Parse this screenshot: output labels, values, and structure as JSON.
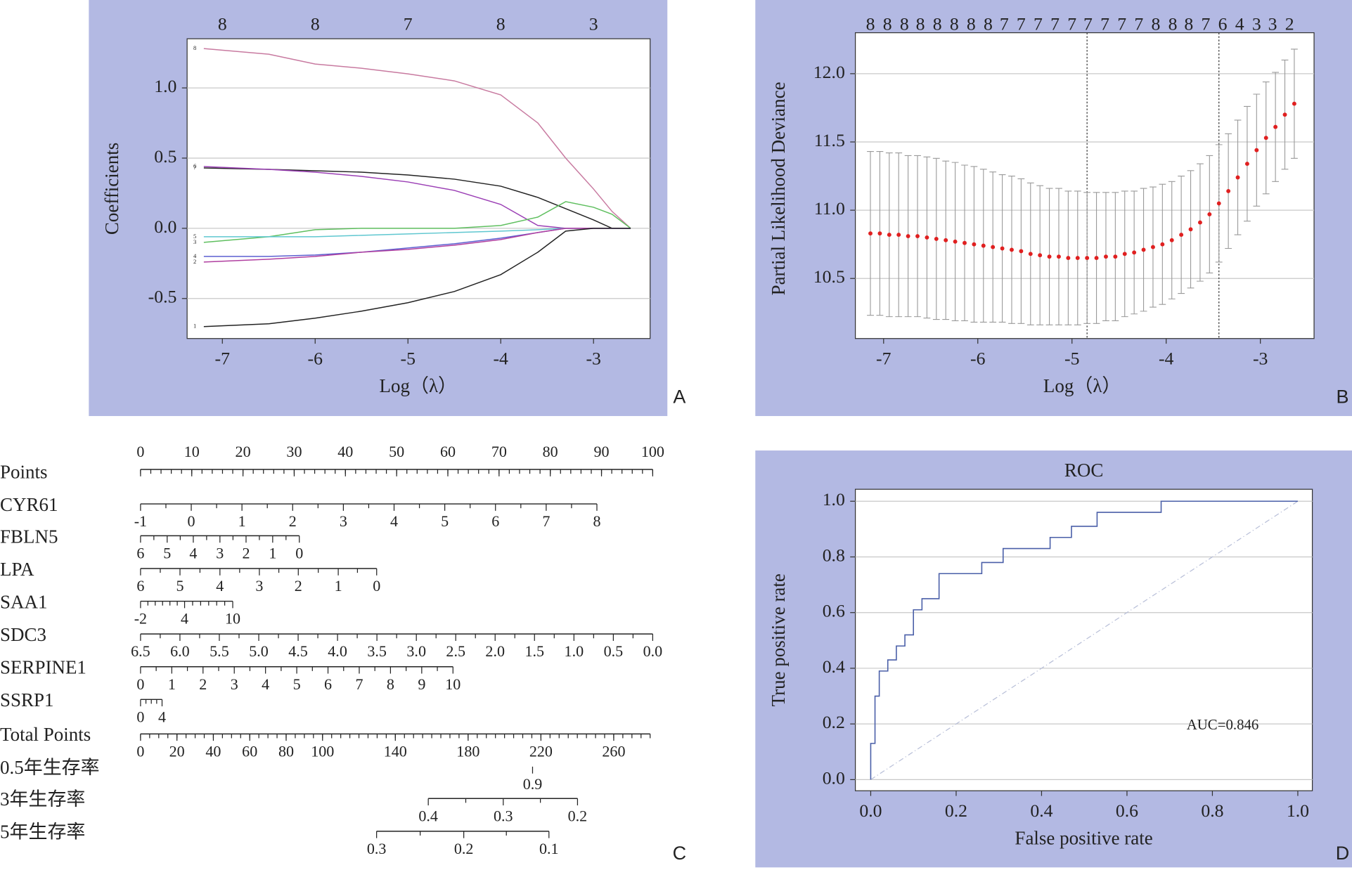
{
  "chart_data": [
    {
      "type": "line",
      "panel_label": "A",
      "xlabel": "Log（λ）",
      "ylabel": "Coefficients",
      "xlim": [
        -7.38,
        -2.39
      ],
      "ylim": [
        -0.785,
        1.35
      ],
      "xticks": [
        -7,
        -6,
        -5,
        -4,
        -3
      ],
      "yticks": [
        -0.5,
        {
          "value": 0,
          "label": "0.0"
        },
        0.5,
        {
          "value": 1,
          "label": "1.0"
        }
      ],
      "top_labels": [
        8,
        8,
        7,
        8,
        3
      ],
      "grid": true,
      "x": [
        -7.2,
        -6.5,
        -6,
        -5.5,
        -5,
        -4.5,
        -4,
        -3.6,
        -3.3,
        -3,
        -2.8,
        -2.6
      ],
      "series": [
        {
          "name": "8",
          "color": "#c87aa0",
          "values": [
            1.28,
            1.24,
            1.17,
            1.14,
            1.1,
            1.05,
            0.95,
            0.75,
            0.5,
            0.28,
            0.12,
            0
          ]
        },
        {
          "name": "7",
          "color": "#222222",
          "values": [
            0.43,
            0.42,
            0.41,
            0.4,
            0.38,
            0.35,
            0.3,
            0.22,
            0.14,
            0.06,
            0,
            0
          ]
        },
        {
          "name": "6",
          "color": "#9b3fb5",
          "values": [
            0.44,
            0.42,
            0.4,
            0.37,
            0.33,
            0.27,
            0.17,
            0.02,
            0,
            0,
            0,
            0
          ]
        },
        {
          "name": "3",
          "color": "#5fbf5f",
          "values": [
            -0.1,
            -0.06,
            -0.01,
            0,
            0,
            0,
            0.02,
            0.08,
            0.19,
            0.15,
            0.1,
            0
          ]
        },
        {
          "name": "5",
          "color": "#5fc7d0",
          "values": [
            -0.06,
            -0.06,
            -0.06,
            -0.05,
            -0.04,
            -0.03,
            -0.02,
            -0.01,
            0,
            0,
            0,
            0
          ]
        },
        {
          "name": "4",
          "color": "#5c5fd0",
          "values": [
            -0.2,
            -0.2,
            -0.19,
            -0.17,
            -0.14,
            -0.11,
            -0.07,
            -0.03,
            0,
            0,
            0,
            0
          ]
        },
        {
          "name": "2",
          "color": "#b03fa0",
          "values": [
            -0.24,
            -0.22,
            -0.2,
            -0.17,
            -0.15,
            -0.12,
            -0.08,
            -0.03,
            0,
            0,
            0,
            0
          ]
        },
        {
          "name": "1",
          "color": "#222222",
          "values": [
            -0.7,
            -0.68,
            -0.64,
            -0.59,
            -0.53,
            -0.45,
            -0.33,
            -0.17,
            -0.02,
            0,
            0,
            0
          ]
        }
      ]
    },
    {
      "type": "errorbar",
      "panel_label": "B",
      "xlabel": "Log（λ）",
      "ylabel": "Partial Likelihood Deviance",
      "xlim": [
        -7.3,
        -2.43
      ],
      "ylim": [
        10.06,
        12.3
      ],
      "xticks": [
        -7,
        -6,
        -5,
        -4,
        -3
      ],
      "yticks": [
        10.5,
        {
          "value": 11,
          "label": "11.0"
        },
        11.5,
        {
          "value": 12,
          "label": "12.0"
        }
      ],
      "grid": true,
      "color": "#e02020",
      "vlines": [
        -4.84,
        -3.44
      ],
      "top_x": [
        -7.14,
        -6.96,
        -6.78,
        -6.61,
        -6.43,
        -6.25,
        -6.07,
        -5.89,
        -5.72,
        -5.54,
        -5.36,
        -5.18,
        -5.0,
        -4.83,
        -4.65,
        -4.47,
        -4.29,
        -4.11,
        -3.93,
        -3.76,
        -3.58,
        -3.4,
        -3.22,
        -3.04,
        -2.87,
        -2.69
      ],
      "top_labels": [
        8,
        8,
        8,
        8,
        8,
        8,
        8,
        8,
        7,
        7,
        7,
        7,
        7,
        7,
        7,
        7,
        7,
        8,
        8,
        8,
        7,
        6,
        4,
        3,
        3,
        2
      ],
      "x": [
        -7.14,
        -7.04,
        -6.94,
        -6.84,
        -6.74,
        -6.64,
        -6.54,
        -6.44,
        -6.34,
        -6.24,
        -6.14,
        -6.04,
        -5.94,
        -5.84,
        -5.74,
        -5.64,
        -5.54,
        -5.44,
        -5.34,
        -5.24,
        -5.14,
        -5.04,
        -4.94,
        -4.84,
        -4.74,
        -4.64,
        -4.54,
        -4.44,
        -4.34,
        -4.24,
        -4.14,
        -4.04,
        -3.94,
        -3.84,
        -3.74,
        -3.64,
        -3.54,
        -3.44,
        -3.34,
        -3.24,
        -3.14,
        -3.04,
        -2.94,
        -2.84,
        -2.74,
        -2.64
      ],
      "values": [
        10.83,
        10.83,
        10.82,
        10.82,
        10.81,
        10.81,
        10.8,
        10.79,
        10.78,
        10.77,
        10.76,
        10.75,
        10.74,
        10.73,
        10.72,
        10.71,
        10.7,
        10.68,
        10.67,
        10.66,
        10.66,
        10.65,
        10.65,
        10.65,
        10.65,
        10.66,
        10.66,
        10.68,
        10.69,
        10.71,
        10.73,
        10.75,
        10.78,
        10.82,
        10.86,
        10.91,
        10.97,
        11.05,
        11.14,
        11.24,
        11.34,
        11.44,
        11.53,
        11.61,
        11.7,
        11.78
      ],
      "errors": [
        0.6,
        0.6,
        0.6,
        0.6,
        0.59,
        0.59,
        0.59,
        0.59,
        0.58,
        0.58,
        0.57,
        0.57,
        0.56,
        0.55,
        0.54,
        0.54,
        0.53,
        0.52,
        0.51,
        0.5,
        0.5,
        0.49,
        0.49,
        0.48,
        0.48,
        0.47,
        0.47,
        0.46,
        0.45,
        0.45,
        0.44,
        0.44,
        0.43,
        0.43,
        0.43,
        0.43,
        0.43,
        0.43,
        0.42,
        0.42,
        0.42,
        0.41,
        0.41,
        0.4,
        0.4,
        0.4
      ]
    },
    {
      "type": "nomogram",
      "panel_label": "C",
      "scales": [
        {
          "name": "Points",
          "ticks": [
            0,
            10,
            20,
            30,
            40,
            50,
            60,
            70,
            80,
            90,
            100
          ],
          "xlim": [
            0,
            100
          ]
        },
        {
          "name": "CYR61",
          "axis": "Points",
          "ticks": [
            -1,
            0,
            1,
            2,
            3,
            4,
            5,
            6,
            7,
            8
          ],
          "pos": [
            0,
            9.9,
            19.8,
            29.7,
            39.6,
            49.5,
            59.4,
            69.3,
            79.2,
            89.1
          ]
        },
        {
          "name": "FBLN5",
          "axis": "Points",
          "ticks": [
            6,
            5,
            4,
            3,
            2,
            1,
            0
          ],
          "pos": [
            0,
            5.2,
            10.3,
            15.5,
            20.6,
            25.8,
            31
          ]
        },
        {
          "name": "LPA",
          "axis": "Points",
          "ticks": [
            6,
            5,
            4,
            3,
            2,
            1,
            0
          ],
          "pos": [
            0,
            7.7,
            15.5,
            23.2,
            30.8,
            38.6,
            46.1
          ]
        },
        {
          "name": "SAA1",
          "axis": "Points",
          "ticks": [
            -2,
            4,
            10
          ],
          "pos": [
            0,
            8.6,
            18
          ]
        },
        {
          "name": "SDC3",
          "axis": "Points",
          "ticks": [
            6.5,
            {
              "value": 6,
              "label": "6.0"
            },
            5.5,
            {
              "value": 5,
              "label": "5.0"
            },
            4.5,
            {
              "value": 4,
              "label": "4.0"
            },
            3.5,
            {
              "value": 3,
              "label": "3.0"
            },
            2.5,
            {
              "value": 2,
              "label": "2.0"
            },
            1.5,
            {
              "value": 1,
              "label": "1.0"
            },
            0.5,
            {
              "value": 0,
              "label": "0.0"
            }
          ],
          "pos": [
            0,
            7.69,
            15.38,
            23.08,
            30.77,
            38.46,
            46.15,
            53.85,
            61.54,
            69.23,
            76.92,
            84.62,
            92.31,
            100
          ]
        },
        {
          "name": "SERPINE1",
          "axis": "Points",
          "ticks": [
            0,
            1,
            2,
            3,
            4,
            5,
            6,
            7,
            8,
            9,
            10
          ],
          "pos": [
            0,
            6.1,
            12.2,
            18.3,
            24.4,
            30.5,
            36.6,
            42.7,
            48.8,
            54.9,
            61
          ]
        },
        {
          "name": "SSRP1",
          "axis": "Points",
          "ticks": [
            0,
            4
          ],
          "pos": [
            0,
            4.2
          ]
        },
        {
          "name": "Total Points",
          "ticks": [
            0,
            20,
            40,
            60,
            80,
            100,
            140,
            180,
            220,
            260
          ],
          "xlim": [
            0,
            280
          ]
        },
        {
          "name": "0.5年生存率",
          "axis": "Total Points",
          "ticks": [
            0.9
          ],
          "pos": [
            215.4
          ]
        },
        {
          "name": "3年生存率",
          "axis": "Total Points",
          "ticks": [
            0.4,
            0.3,
            0.2
          ],
          "pos": [
            158.1,
            199.3,
            240.1
          ]
        },
        {
          "name": "5年生存率",
          "axis": "Total Points",
          "ticks": [
            0.3,
            0.2,
            0.1
          ],
          "pos": [
            129.7,
            177.6,
            224.4
          ]
        }
      ]
    },
    {
      "type": "line",
      "panel_label": "D",
      "title": "ROC",
      "xlabel": "False positive rate",
      "ylabel": "True positive rate",
      "annotation": "AUC=0.846",
      "color": "#4a5fa8",
      "grid": true,
      "diagonal": true,
      "xlim": [
        -0.036,
        1.034
      ],
      "ylim": [
        -0.04,
        1.043
      ],
      "xticks": [
        {
          "value": 0,
          "label": "0.0"
        },
        {
          "value": 0.2,
          "label": "0.2"
        },
        {
          "value": 0.4,
          "label": "0.4"
        },
        {
          "value": 0.6,
          "label": "0.6"
        },
        {
          "value": 0.8,
          "label": "0.8"
        },
        {
          "value": 1,
          "label": "1.0"
        }
      ],
      "yticks": [
        {
          "value": 0,
          "label": "0.0"
        },
        {
          "value": 0.2,
          "label": "0.2"
        },
        {
          "value": 0.4,
          "label": "0.4"
        },
        {
          "value": 0.6,
          "label": "0.6"
        },
        {
          "value": 0.8,
          "label": "0.8"
        },
        {
          "value": 1,
          "label": "1.0"
        }
      ],
      "x": [
        0,
        0,
        0.01,
        0.01,
        0.02,
        0.02,
        0.04,
        0.04,
        0.06,
        0.06,
        0.08,
        0.08,
        0.1,
        0.1,
        0.12,
        0.12,
        0.16,
        0.16,
        0.26,
        0.26,
        0.31,
        0.31,
        0.42,
        0.42,
        0.47,
        0.47,
        0.53,
        0.53,
        0.68,
        0.68,
        1
      ],
      "values": [
        0,
        0.13,
        0.13,
        0.3,
        0.3,
        0.39,
        0.39,
        0.43,
        0.43,
        0.48,
        0.48,
        0.52,
        0.52,
        0.61,
        0.61,
        0.65,
        0.65,
        0.74,
        0.74,
        0.78,
        0.78,
        0.83,
        0.83,
        0.87,
        0.87,
        0.91,
        0.91,
        0.96,
        0.96,
        1,
        1
      ]
    }
  ]
}
